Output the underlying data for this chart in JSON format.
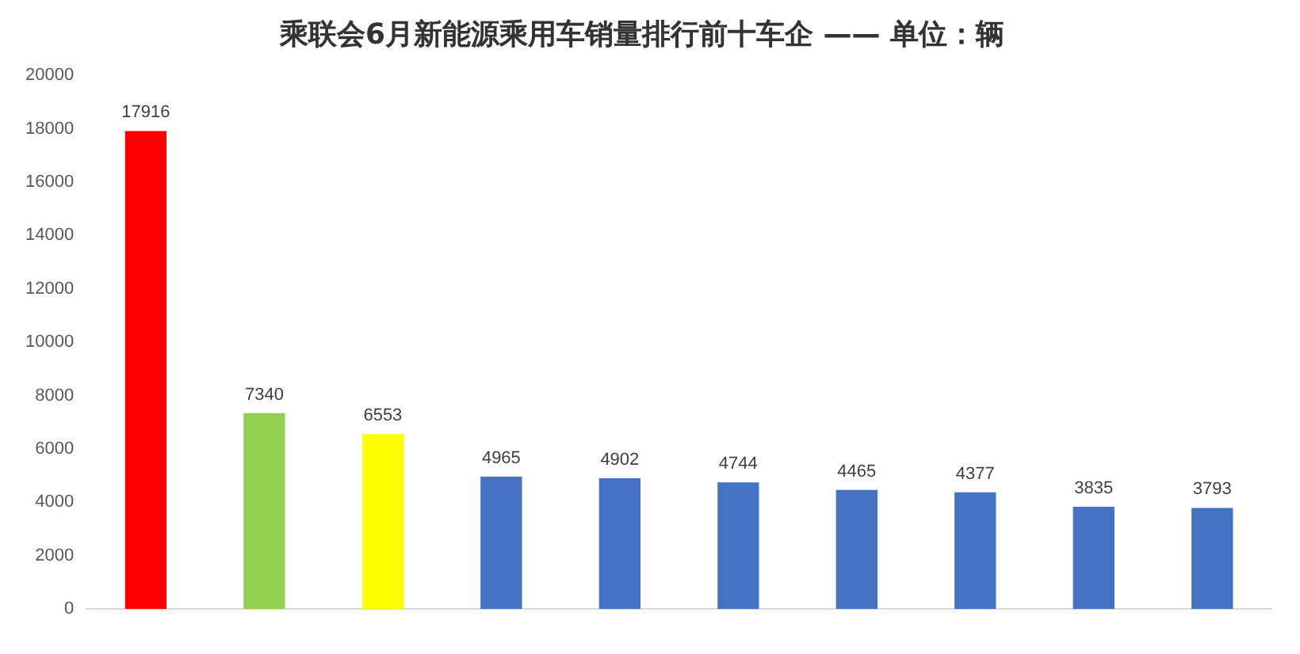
{
  "chart_data": {
    "type": "bar",
    "title": "乘联会6月新能源乘用车销量排行前十车企 —— 单位：辆",
    "categories": [
      null,
      null,
      null,
      null,
      null,
      null,
      null,
      null,
      null,
      null
    ],
    "values": [
      17916,
      7340,
      6553,
      4965,
      4902,
      4744,
      4465,
      4377,
      3835,
      3793
    ],
    "colors": [
      "#ff0000",
      "#92d050",
      "#ffff00",
      "#4472c4",
      "#4472c4",
      "#4472c4",
      "#4472c4",
      "#4472c4",
      "#4472c4",
      "#4472c4"
    ],
    "ylim": [
      0,
      20000
    ],
    "yticks": [
      0,
      2000,
      4000,
      6000,
      8000,
      10000,
      12000,
      14000,
      16000,
      18000,
      20000
    ],
    "grid": false,
    "data_labels": true,
    "legend": false
  }
}
